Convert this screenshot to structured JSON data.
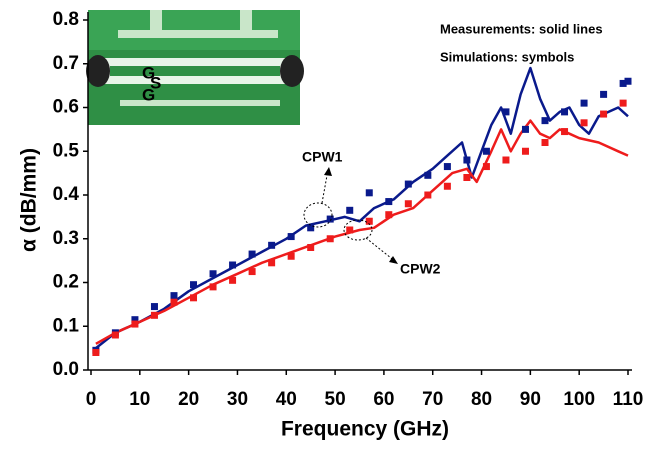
{
  "chart_data": {
    "type": "line",
    "xlabel": "Frequency (GHz)",
    "ylabel": "α (dB/mm)",
    "xlim": [
      0,
      110
    ],
    "xticks": [
      0,
      10,
      20,
      30,
      40,
      50,
      60,
      70,
      80,
      90,
      100,
      110
    ],
    "ylim": [
      0,
      0.8
    ],
    "yticks": [
      {
        "value": 0,
        "label": "0.0"
      },
      0.1,
      0.2,
      0.3,
      0.4,
      0.5,
      0.6,
      0.7,
      0.8
    ],
    "grid": false,
    "annotations": [
      "Measurements: solid lines",
      "Simulations: symbols",
      "CPW1",
      "CPW2"
    ],
    "inset_labels": [
      "G",
      "S",
      "G"
    ],
    "series": [
      {
        "style": "line",
        "color": "#0a1a8c",
        "x": [
          1,
          5,
          10,
          15,
          20,
          25,
          30,
          35,
          40,
          44,
          48,
          52,
          55,
          58,
          62,
          66,
          70,
          73,
          76,
          78,
          80,
          82,
          84,
          86,
          88,
          90,
          92,
          94,
          96,
          98,
          100,
          102,
          104,
          106,
          108,
          110
        ],
        "values": [
          0.05,
          0.085,
          0.11,
          0.14,
          0.18,
          0.21,
          0.24,
          0.27,
          0.3,
          0.33,
          0.34,
          0.35,
          0.34,
          0.37,
          0.39,
          0.43,
          0.46,
          0.49,
          0.52,
          0.44,
          0.5,
          0.56,
          0.6,
          0.54,
          0.63,
          0.69,
          0.62,
          0.57,
          0.59,
          0.6,
          0.56,
          0.54,
          0.58,
          0.59,
          0.6,
          0.58
        ]
      },
      {
        "style": "line",
        "color": "#ee1c1c",
        "x": [
          1,
          5,
          10,
          15,
          20,
          25,
          30,
          35,
          40,
          45,
          50,
          55,
          58,
          62,
          66,
          70,
          74,
          77,
          79,
          82,
          84,
          86,
          88,
          90,
          92,
          94,
          96,
          98,
          100,
          104,
          108,
          110
        ],
        "values": [
          0.06,
          0.085,
          0.11,
          0.135,
          0.165,
          0.195,
          0.22,
          0.245,
          0.265,
          0.285,
          0.305,
          0.32,
          0.325,
          0.355,
          0.37,
          0.41,
          0.45,
          0.46,
          0.43,
          0.5,
          0.55,
          0.5,
          0.54,
          0.57,
          0.54,
          0.53,
          0.55,
          0.54,
          0.53,
          0.52,
          0.5,
          0.49
        ]
      },
      {
        "style": "markers",
        "color": "#0a1a8c",
        "x": [
          1,
          5,
          9,
          13,
          17,
          21,
          25,
          29,
          33,
          37,
          41,
          45,
          49,
          53,
          57,
          61,
          65,
          69,
          73,
          77,
          81,
          85,
          89,
          93,
          97,
          101,
          105,
          109,
          110
        ],
        "values": [
          0.045,
          0.085,
          0.115,
          0.145,
          0.17,
          0.195,
          0.22,
          0.24,
          0.265,
          0.285,
          0.305,
          0.325,
          0.345,
          0.365,
          0.405,
          0.385,
          0.425,
          0.445,
          0.465,
          0.48,
          0.5,
          0.59,
          0.55,
          0.57,
          0.59,
          0.61,
          0.63,
          0.655,
          0.66
        ]
      },
      {
        "style": "markers",
        "color": "#ee1c1c",
        "x": [
          1,
          5,
          9,
          13,
          17,
          21,
          25,
          29,
          33,
          37,
          41,
          45,
          49,
          53,
          57,
          61,
          65,
          69,
          73,
          77,
          81,
          85,
          89,
          93,
          97,
          101,
          105,
          109
        ],
        "values": [
          0.04,
          0.08,
          0.105,
          0.125,
          0.155,
          0.165,
          0.19,
          0.205,
          0.225,
          0.245,
          0.26,
          0.28,
          0.3,
          0.32,
          0.34,
          0.355,
          0.38,
          0.4,
          0.42,
          0.44,
          0.465,
          0.48,
          0.5,
          0.52,
          0.545,
          0.565,
          0.585,
          0.61
        ]
      }
    ]
  }
}
